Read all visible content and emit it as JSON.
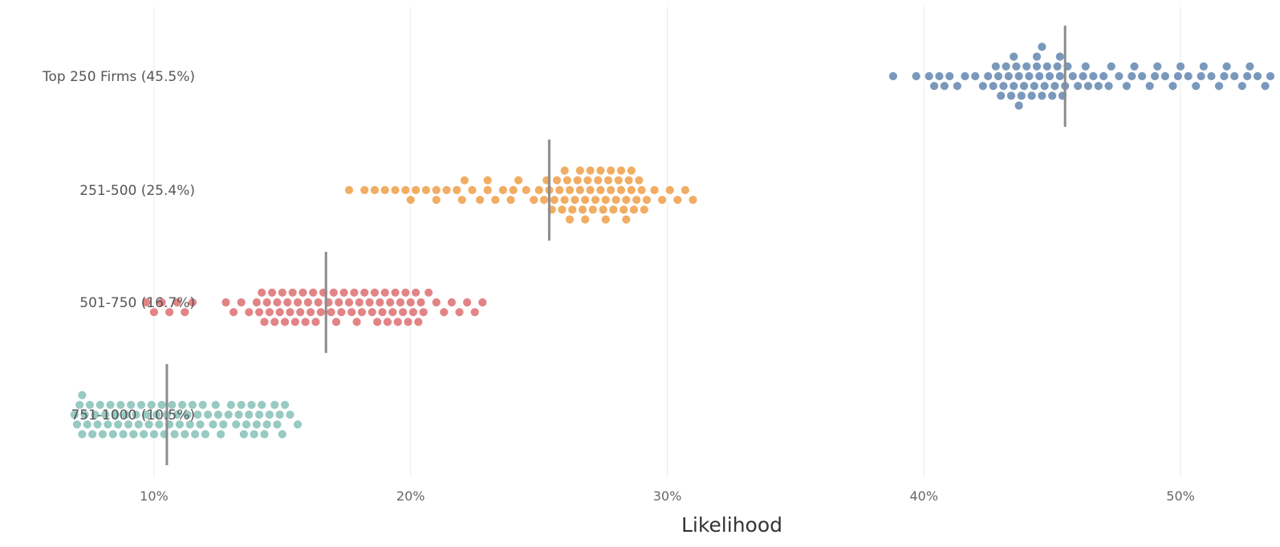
{
  "chart_data": {
    "type": "scatter",
    "subtype": "beeswarm",
    "title": "",
    "xlabel": "Likelihood",
    "ylabel": "",
    "xlim": [
      0.065,
      0.535
    ],
    "x_ticks": [
      0.1,
      0.2,
      0.3,
      0.4,
      0.5
    ],
    "x_tick_labels": [
      "10%",
      "20%",
      "30%",
      "40%",
      "50%"
    ],
    "grid": true,
    "legend": "none",
    "series": [
      {
        "name": "Top 250 Firms (45.5%)",
        "median": 0.455,
        "color": "#6f8fb5",
        "values": [
          0.388,
          0.397,
          0.402,
          0.404,
          0.406,
          0.408,
          0.41,
          0.413,
          0.416,
          0.42,
          0.423,
          0.425,
          0.427,
          0.429,
          0.43,
          0.431,
          0.432,
          0.433,
          0.434,
          0.435,
          0.436,
          0.437,
          0.438,
          0.439,
          0.44,
          0.441,
          0.442,
          0.443,
          0.444,
          0.445,
          0.446,
          0.447,
          0.448,
          0.449,
          0.45,
          0.451,
          0.452,
          0.453,
          0.454,
          0.456,
          0.458,
          0.46,
          0.462,
          0.464,
          0.466,
          0.468,
          0.47,
          0.473,
          0.476,
          0.479,
          0.482,
          0.485,
          0.488,
          0.491,
          0.494,
          0.497,
          0.5,
          0.503,
          0.506,
          0.509,
          0.512,
          0.515,
          0.518,
          0.521,
          0.524,
          0.527,
          0.53,
          0.533,
          0.535,
          0.428,
          0.437,
          0.446,
          0.455,
          0.463,
          0.472,
          0.481,
          0.49,
          0.499,
          0.508,
          0.517,
          0.526,
          0.435,
          0.444,
          0.453
        ]
      },
      {
        "name": "251-500 (25.4%)",
        "median": 0.254,
        "color": "#f0a656",
        "values": [
          0.176,
          0.182,
          0.186,
          0.19,
          0.194,
          0.198,
          0.202,
          0.206,
          0.21,
          0.214,
          0.218,
          0.221,
          0.224,
          0.227,
          0.23,
          0.233,
          0.236,
          0.239,
          0.242,
          0.245,
          0.248,
          0.25,
          0.252,
          0.254,
          0.256,
          0.258,
          0.26,
          0.262,
          0.264,
          0.266,
          0.268,
          0.27,
          0.272,
          0.274,
          0.276,
          0.278,
          0.28,
          0.282,
          0.284,
          0.286,
          0.288,
          0.29,
          0.292,
          0.295,
          0.298,
          0.301,
          0.304,
          0.307,
          0.31,
          0.255,
          0.259,
          0.263,
          0.267,
          0.271,
          0.275,
          0.279,
          0.283,
          0.287,
          0.291,
          0.257,
          0.261,
          0.265,
          0.269,
          0.273,
          0.277,
          0.281,
          0.285,
          0.289,
          0.253,
          0.26,
          0.268,
          0.276,
          0.284,
          0.262,
          0.27,
          0.278,
          0.286,
          0.266,
          0.274,
          0.282,
          0.22,
          0.23,
          0.24,
          0.2,
          0.21
        ]
      },
      {
        "name": "501-750 (16.7%)",
        "median": 0.167,
        "color": "#e0797c",
        "values": [
          0.097,
          0.1,
          0.103,
          0.106,
          0.109,
          0.112,
          0.115,
          0.128,
          0.131,
          0.134,
          0.137,
          0.14,
          0.142,
          0.144,
          0.146,
          0.148,
          0.15,
          0.152,
          0.154,
          0.156,
          0.158,
          0.16,
          0.162,
          0.164,
          0.166,
          0.168,
          0.17,
          0.172,
          0.174,
          0.176,
          0.178,
          0.18,
          0.182,
          0.184,
          0.186,
          0.188,
          0.19,
          0.192,
          0.194,
          0.196,
          0.198,
          0.2,
          0.202,
          0.204,
          0.207,
          0.21,
          0.213,
          0.216,
          0.219,
          0.222,
          0.225,
          0.228,
          0.141,
          0.145,
          0.149,
          0.153,
          0.157,
          0.161,
          0.165,
          0.169,
          0.173,
          0.177,
          0.181,
          0.185,
          0.189,
          0.193,
          0.197,
          0.201,
          0.143,
          0.151,
          0.159,
          0.163,
          0.171,
          0.179,
          0.187,
          0.195,
          0.199,
          0.147,
          0.155,
          0.191,
          0.203,
          0.205
        ]
      },
      {
        "name": "751-1000 (10.5%)",
        "median": 0.105,
        "color": "#8ec6bd",
        "values": [
          0.069,
          0.072,
          0.075,
          0.078,
          0.081,
          0.084,
          0.087,
          0.09,
          0.093,
          0.096,
          0.099,
          0.102,
          0.105,
          0.108,
          0.111,
          0.114,
          0.117,
          0.12,
          0.123,
          0.126,
          0.129,
          0.132,
          0.135,
          0.138,
          0.141,
          0.144,
          0.147,
          0.15,
          0.153,
          0.156,
          0.07,
          0.073,
          0.076,
          0.079,
          0.082,
          0.085,
          0.088,
          0.091,
          0.094,
          0.097,
          0.1,
          0.103,
          0.106,
          0.109,
          0.112,
          0.115,
          0.118,
          0.121,
          0.124,
          0.127,
          0.13,
          0.133,
          0.136,
          0.139,
          0.142,
          0.145,
          0.148,
          0.151,
          0.071,
          0.074,
          0.077,
          0.083,
          0.089,
          0.095,
          0.101,
          0.107,
          0.113,
          0.119,
          0.125,
          0.137,
          0.143,
          0.149,
          0.072,
          0.08,
          0.086,
          0.092,
          0.098,
          0.104,
          0.11,
          0.116,
          0.134,
          0.14
        ]
      }
    ]
  }
}
